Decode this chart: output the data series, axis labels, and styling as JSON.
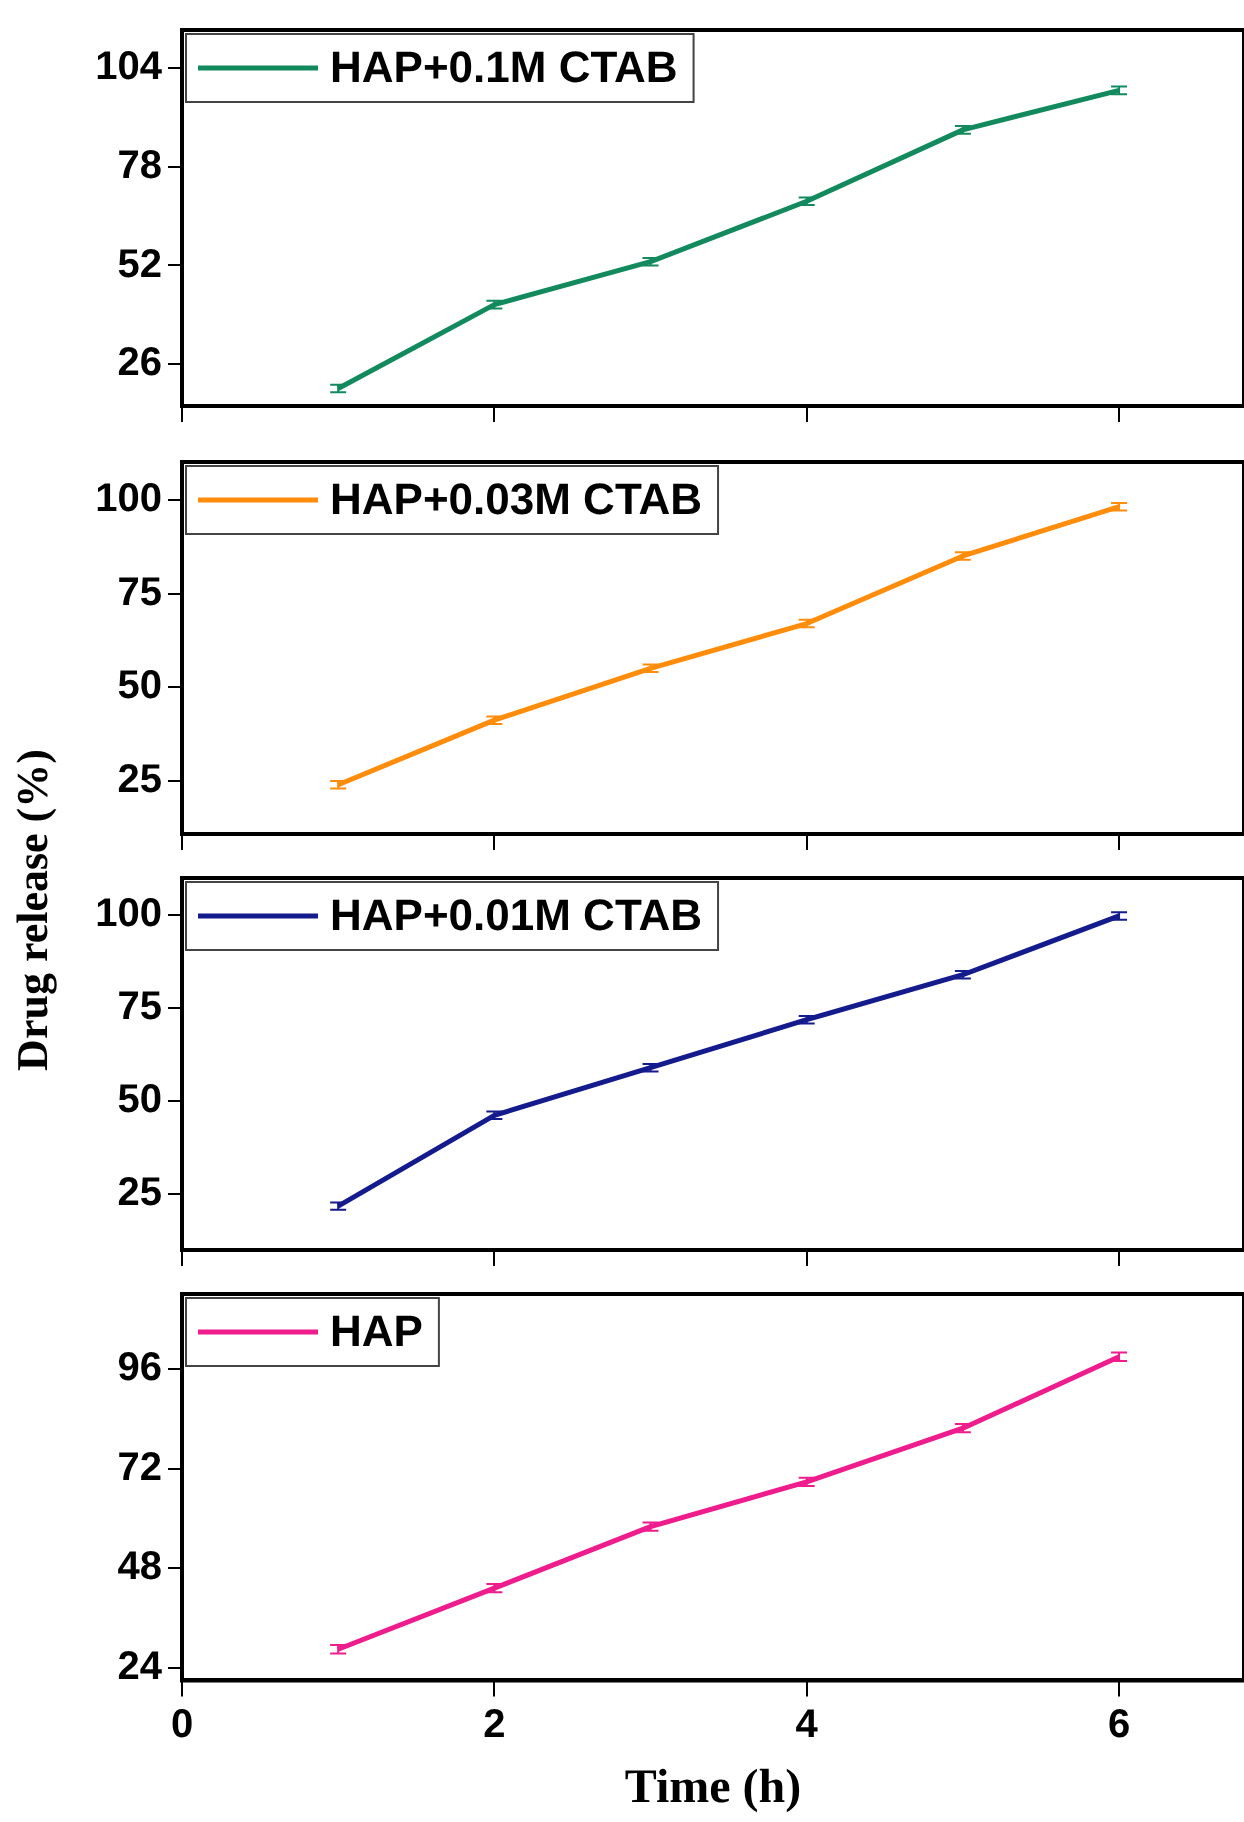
{
  "chart_data": [
    {
      "type": "line",
      "x": [
        1,
        2,
        3,
        4,
        5,
        6
      ],
      "xlim": [
        0,
        6.8
      ],
      "xticks": [
        0,
        2,
        4,
        6
      ],
      "ylim": [
        15,
        114
      ],
      "yticks": [
        26,
        52,
        78,
        104
      ],
      "tick_labels": "y",
      "grid": false,
      "legend": "top left",
      "marker": "none",
      "line_style": "solid",
      "series": [
        {
          "name": "HAP+0.1M CTAB",
          "color": "#138a5e",
          "values": [
            19.6,
            41.7,
            53,
            68.9,
            87.7,
            98.1
          ],
          "errors": [
            1,
            1,
            1,
            1,
            1,
            1
          ]
        }
      ]
    },
    {
      "type": "line",
      "x": [
        1,
        2,
        3,
        4,
        5,
        6
      ],
      "xlim": [
        0,
        6.8
      ],
      "xticks": [
        0,
        2,
        4,
        6
      ],
      "ylim": [
        11,
        110
      ],
      "yticks": [
        25,
        50,
        75,
        100
      ],
      "tick_labels": "y",
      "grid": false,
      "legend": "top left",
      "marker": "none",
      "line_style": "solid",
      "ylabel": "Drug release (%)",
      "series": [
        {
          "name": "HAP+0.03M CTAB",
          "color": "#ff8c0a",
          "values": [
            24.1,
            41.3,
            55.1,
            67,
            85,
            98.1
          ],
          "errors": [
            1,
            1,
            1,
            1,
            1,
            1
          ]
        }
      ]
    },
    {
      "type": "line",
      "x": [
        1,
        2,
        3,
        4,
        5,
        6
      ],
      "xlim": [
        0,
        6.8
      ],
      "xticks": [
        0,
        2,
        4,
        6
      ],
      "ylim": [
        10,
        110
      ],
      "yticks": [
        25,
        50,
        75,
        100
      ],
      "tick_labels": "y",
      "grid": false,
      "legend": "top left",
      "marker": "none",
      "line_style": "solid",
      "series": [
        {
          "name": "HAP+0.01M CTAB",
          "color": "#141b8c",
          "values": [
            21.8,
            46.2,
            59,
            71.9,
            84,
            99.8
          ],
          "errors": [
            1,
            1,
            1,
            1,
            1,
            1
          ]
        }
      ]
    },
    {
      "type": "line",
      "x": [
        1,
        2,
        3,
        4,
        5,
        6
      ],
      "xlim": [
        0,
        6.8
      ],
      "xticks": [
        0,
        2,
        4,
        6
      ],
      "ylim": [
        21,
        114
      ],
      "yticks": [
        24,
        48,
        72,
        96
      ],
      "grid": false,
      "legend": "top left",
      "marker": "none",
      "line_style": "solid",
      "xlabel": "Time (h)",
      "series": [
        {
          "name": "HAP",
          "color": "#ee1c8c",
          "values": [
            28.5,
            43.2,
            58,
            68.8,
            81.7,
            98.9
          ],
          "errors": [
            1,
            1,
            1,
            1,
            1,
            1
          ]
        }
      ]
    }
  ]
}
